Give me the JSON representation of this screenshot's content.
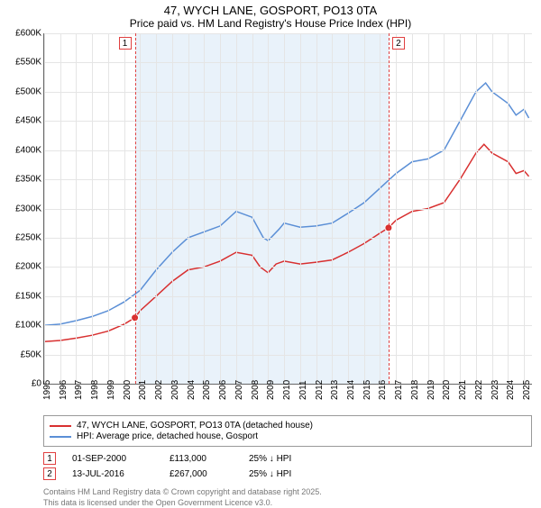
{
  "title": {
    "line1": "47, WYCH LANE, GOSPORT, PO13 0TA",
    "line2": "Price paid vs. HM Land Registry's House Price Index (HPI)"
  },
  "chart": {
    "type": "line",
    "background_color": "#ffffff",
    "grid_color": "#e5e5e5",
    "axis_color": "#666666",
    "xlim": [
      1995,
      2025.5
    ],
    "ylim": [
      0,
      600000
    ],
    "ytick_step": 50000,
    "ytick_prefix": "£",
    "ytick_suffix": "K",
    "ytick_labels": [
      "£0",
      "£50K",
      "£100K",
      "£150K",
      "£200K",
      "£250K",
      "£300K",
      "£350K",
      "£400K",
      "£450K",
      "£500K",
      "£550K",
      "£600K"
    ],
    "xtick_years": [
      1995,
      1996,
      1997,
      1998,
      1999,
      2000,
      2001,
      2002,
      2003,
      2004,
      2005,
      2006,
      2007,
      2008,
      2009,
      2010,
      2011,
      2012,
      2013,
      2014,
      2015,
      2016,
      2017,
      2018,
      2019,
      2020,
      2021,
      2022,
      2023,
      2024,
      2025
    ],
    "band": {
      "start_x": 2000.67,
      "end_x": 2016.53,
      "fill": "#e0ecf8",
      "edge_color": "#e04040"
    },
    "series": [
      {
        "id": "price_paid",
        "label": "47, WYCH LANE, GOSPORT, PO13 0TA (detached house)",
        "color": "#d83030",
        "line_width": 2,
        "points": [
          [
            1995,
            72000
          ],
          [
            1996,
            74000
          ],
          [
            1997,
            78000
          ],
          [
            1998,
            83000
          ],
          [
            1999,
            90000
          ],
          [
            2000,
            102000
          ],
          [
            2000.67,
            113000
          ],
          [
            2001,
            125000
          ],
          [
            2002,
            150000
          ],
          [
            2003,
            175000
          ],
          [
            2004,
            195000
          ],
          [
            2005,
            200000
          ],
          [
            2006,
            210000
          ],
          [
            2007,
            225000
          ],
          [
            2008,
            220000
          ],
          [
            2008.5,
            200000
          ],
          [
            2009,
            190000
          ],
          [
            2009.5,
            205000
          ],
          [
            2010,
            210000
          ],
          [
            2011,
            205000
          ],
          [
            2012,
            208000
          ],
          [
            2013,
            212000
          ],
          [
            2014,
            225000
          ],
          [
            2015,
            240000
          ],
          [
            2016,
            258000
          ],
          [
            2016.53,
            267000
          ],
          [
            2017,
            280000
          ],
          [
            2018,
            295000
          ],
          [
            2019,
            300000
          ],
          [
            2020,
            310000
          ],
          [
            2021,
            350000
          ],
          [
            2022,
            395000
          ],
          [
            2022.5,
            410000
          ],
          [
            2023,
            395000
          ],
          [
            2024,
            380000
          ],
          [
            2024.5,
            360000
          ],
          [
            2025,
            365000
          ],
          [
            2025.3,
            355000
          ]
        ],
        "markers": [
          {
            "x": 2000.67,
            "y": 113000,
            "label": "1"
          },
          {
            "x": 2016.53,
            "y": 267000,
            "label": "2"
          }
        ]
      },
      {
        "id": "hpi",
        "label": "HPI: Average price, detached house, Gosport",
        "color": "#5b8fd6",
        "line_width": 1.5,
        "points": [
          [
            1995,
            100000
          ],
          [
            1996,
            102000
          ],
          [
            1997,
            108000
          ],
          [
            1998,
            115000
          ],
          [
            1999,
            125000
          ],
          [
            2000,
            140000
          ],
          [
            2001,
            160000
          ],
          [
            2002,
            195000
          ],
          [
            2003,
            225000
          ],
          [
            2004,
            250000
          ],
          [
            2005,
            260000
          ],
          [
            2006,
            270000
          ],
          [
            2007,
            295000
          ],
          [
            2008,
            285000
          ],
          [
            2008.7,
            250000
          ],
          [
            2009,
            245000
          ],
          [
            2009.7,
            265000
          ],
          [
            2010,
            275000
          ],
          [
            2011,
            268000
          ],
          [
            2012,
            270000
          ],
          [
            2013,
            275000
          ],
          [
            2014,
            292000
          ],
          [
            2015,
            310000
          ],
          [
            2016,
            335000
          ],
          [
            2017,
            360000
          ],
          [
            2018,
            380000
          ],
          [
            2019,
            385000
          ],
          [
            2020,
            400000
          ],
          [
            2021,
            450000
          ],
          [
            2022,
            500000
          ],
          [
            2022.6,
            515000
          ],
          [
            2023,
            500000
          ],
          [
            2024,
            480000
          ],
          [
            2024.5,
            460000
          ],
          [
            2025,
            470000
          ],
          [
            2025.3,
            455000
          ]
        ]
      }
    ]
  },
  "legend": {
    "items": [
      {
        "color": "#d83030",
        "label": "47, WYCH LANE, GOSPORT, PO13 0TA (detached house)"
      },
      {
        "color": "#5b8fd6",
        "label": "HPI: Average price, detached house, Gosport"
      }
    ]
  },
  "annotations": [
    {
      "num": "1",
      "date": "01-SEP-2000",
      "price": "£113,000",
      "pct": "25% ↓ HPI"
    },
    {
      "num": "2",
      "date": "13-JUL-2016",
      "price": "£267,000",
      "pct": "25% ↓ HPI"
    }
  ],
  "credit": {
    "line1": "Contains HM Land Registry data © Crown copyright and database right 2025.",
    "line2": "This data is licensed under the Open Government Licence v3.0."
  }
}
